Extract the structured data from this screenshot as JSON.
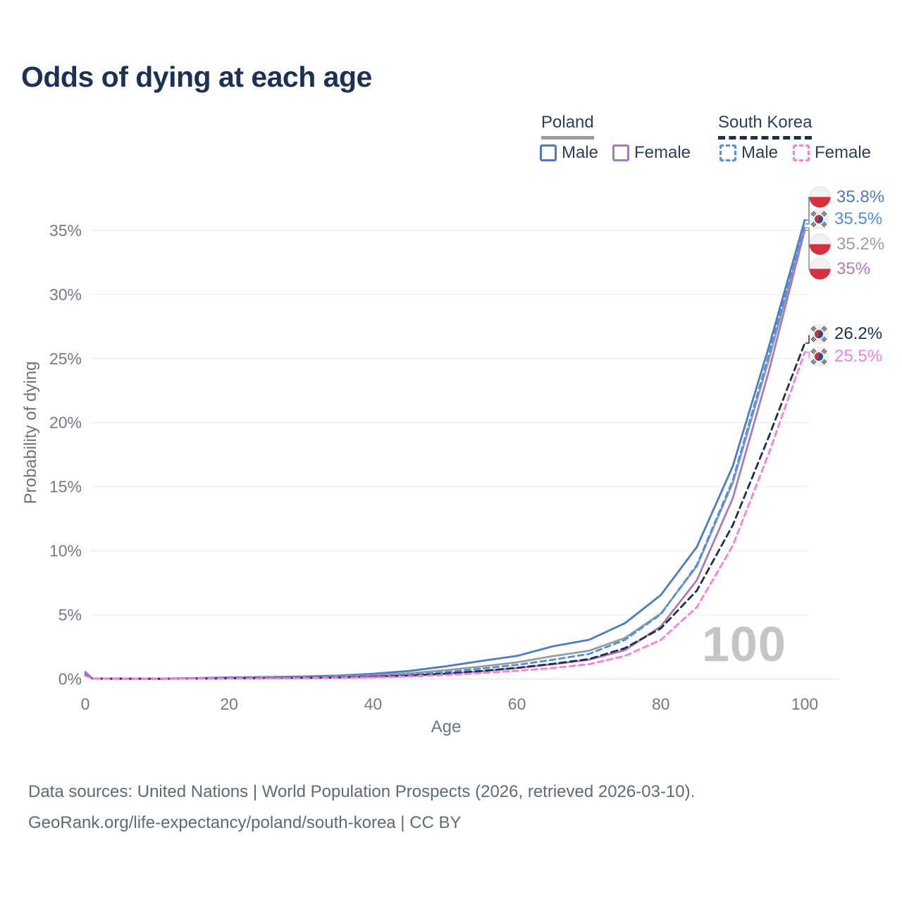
{
  "page": {
    "title": "Odds of dying at each age"
  },
  "legend": {
    "poland_label": "Poland",
    "south_korea_label": "South Korea",
    "poland_male_label": "Male",
    "poland_female_label": "Female",
    "sk_male_label": "Male",
    "sk_female_label": "Female"
  },
  "chart_data": {
    "type": "line",
    "title": "Odds of dying at each age",
    "xlabel": "Age",
    "ylabel": "Probability of dying",
    "watermark": "100",
    "xlim": [
      0,
      100
    ],
    "ylim": [
      0,
      37.5
    ],
    "x_ticks": [
      0,
      20,
      40,
      60,
      80,
      100
    ],
    "y_ticks": [
      "0%",
      "5%",
      "10%",
      "15%",
      "20%",
      "25%",
      "30%",
      "35%"
    ],
    "grid": "horizontal",
    "legend_position": "top-right",
    "x": [
      0,
      1,
      5,
      10,
      15,
      20,
      25,
      30,
      35,
      40,
      45,
      50,
      55,
      60,
      65,
      70,
      75,
      80,
      85,
      90,
      95,
      100
    ],
    "series": [
      {
        "name": "poland_male",
        "country": "Poland",
        "sex": "male",
        "line_style": "solid",
        "color": "#4d7cc3",
        "end_label": "35.8%",
        "flag": "poland",
        "values": [
          0.55,
          0.04,
          0.03,
          0.02,
          0.06,
          0.12,
          0.15,
          0.19,
          0.26,
          0.4,
          0.62,
          0.98,
          1.4,
          1.8,
          2.55,
          3.05,
          4.35,
          6.55,
          10.3,
          16.6,
          25.9,
          35.8
        ]
      },
      {
        "name": "poland_both",
        "country": "Poland",
        "sex": "both",
        "line_style": "solid",
        "color": "#9b9b9b",
        "end_label": "35.2%",
        "flag": "poland",
        "values": [
          0.5,
          0.035,
          0.025,
          0.018,
          0.045,
          0.08,
          0.1,
          0.13,
          0.18,
          0.28,
          0.44,
          0.68,
          0.97,
          1.3,
          1.78,
          2.2,
          3.2,
          5.1,
          8.8,
          15.3,
          24.9,
          35.2
        ]
      },
      {
        "name": "poland_female",
        "country": "Poland",
        "sex": "female",
        "line_style": "solid",
        "color": "#a97bb5",
        "end_label": "35%",
        "flag": "poland",
        "values": [
          0.45,
          0.03,
          0.02,
          0.015,
          0.03,
          0.05,
          0.06,
          0.08,
          0.11,
          0.17,
          0.27,
          0.42,
          0.6,
          0.85,
          1.15,
          1.5,
          2.25,
          4.1,
          7.7,
          14.1,
          24.0,
          35.0
        ]
      },
      {
        "name": "south_korea_male",
        "country": "South Korea",
        "sex": "male",
        "line_style": "dashed",
        "color": "#4a90e8",
        "end_label": "35.5%",
        "flag": "south_korea",
        "values": [
          0.3,
          0.025,
          0.015,
          0.012,
          0.03,
          0.06,
          0.08,
          0.1,
          0.14,
          0.21,
          0.33,
          0.53,
          0.8,
          1.1,
          1.5,
          1.95,
          3.05,
          5.05,
          8.9,
          15.5,
          25.3,
          35.5
        ]
      },
      {
        "name": "south_korea_both",
        "country": "South Korea",
        "sex": "both",
        "line_style": "dashed",
        "color": "#1e3048",
        "end_label": "26.2%",
        "flag": "south_korea",
        "values": [
          0.28,
          0.022,
          0.014,
          0.011,
          0.025,
          0.045,
          0.06,
          0.08,
          0.11,
          0.17,
          0.26,
          0.41,
          0.62,
          0.87,
          1.18,
          1.55,
          2.4,
          3.95,
          6.9,
          12.0,
          18.9,
          26.2
        ]
      },
      {
        "name": "south_korea_female",
        "country": "South Korea",
        "sex": "female",
        "line_style": "dashed",
        "color": "#fb7edd",
        "end_label": "25.5%",
        "flag": "south_korea",
        "values": [
          0.25,
          0.02,
          0.012,
          0.01,
          0.02,
          0.03,
          0.04,
          0.055,
          0.08,
          0.12,
          0.19,
          0.3,
          0.46,
          0.63,
          0.86,
          1.15,
          1.8,
          3.05,
          5.6,
          10.4,
          17.6,
          25.5
        ]
      }
    ]
  },
  "footer": {
    "line1": "Data sources: United Nations | World Population Prospects (2026, retrieved 2026-03-10).",
    "line2": "GeoRank.org/life-expectancy/poland/south-korea | CC BY"
  },
  "colors": {
    "title_text": "#1d3252",
    "poland_male": "#4d7cc3",
    "poland_both": "#9b9b9b",
    "poland_female": "#a97bb5",
    "south_korea_male": "#4a90e8",
    "south_korea_both": "#1e3048",
    "south_korea_female": "#fb7edd",
    "gridline": "#efefef",
    "axis_text": "#757a80",
    "watermark": "#c5c5c5"
  }
}
